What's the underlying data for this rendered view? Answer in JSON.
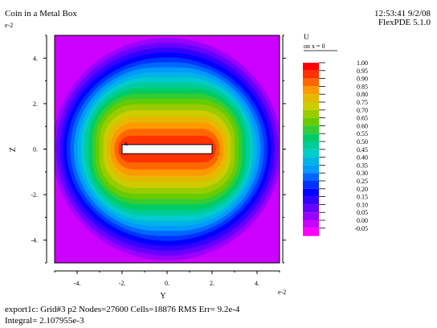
{
  "header": {
    "title": "Coin in a Metal Box",
    "timestamp": "12:53:41 9/2/08",
    "software": "FlexPDE 5.1.0"
  },
  "footer": {
    "stats": "export1c:  Grid#3  p2  Nodes=27600 Cells=18876 RMS Err= 9.2e-4",
    "integral": "Integral=  2.107955e-3"
  },
  "legend": {
    "variable": "U",
    "subtitle": "on x = 0",
    "levels": [
      "1.00",
      "0.95",
      "0.90",
      "0.85",
      "0.80",
      "0.75",
      "0.70",
      "0.65",
      "0.60",
      "0.55",
      "0.50",
      "0.45",
      "0.40",
      "0.35",
      "0.30",
      "0.25",
      "0.20",
      "0.15",
      "0.10",
      "0.05",
      "0.00",
      "-0.05"
    ],
    "colors": [
      "#ff0000",
      "#ff3300",
      "#ff6600",
      "#ff9900",
      "#e6b800",
      "#cccc00",
      "#99cc00",
      "#66cc00",
      "#33cc33",
      "#00cc66",
      "#00cc99",
      "#00cccc",
      "#00b3e6",
      "#0099ff",
      "#0066ff",
      "#0033ff",
      "#0000ff",
      "#3300ff",
      "#6600ff",
      "#9900ff",
      "#cc00ff",
      "#ff00ff"
    ]
  },
  "chart_data": {
    "type": "heatmap",
    "title": "Coin in a Metal Box",
    "xlabel": "Y",
    "ylabel": "Z",
    "x_scale_label": "e-2",
    "y_scale_label": "e-2",
    "x_ticks": [
      "-4.",
      "-2.",
      "0.",
      "2.",
      "4."
    ],
    "y_ticks": [
      "4.",
      "2.",
      "0.",
      "-2.",
      "-4."
    ],
    "x_tick_values": [
      -4,
      -2,
      0,
      2,
      4
    ],
    "y_tick_values": [
      4,
      2,
      0,
      -2,
      -4
    ],
    "xlim": [
      -5,
      5
    ],
    "ylim": [
      -5,
      5
    ],
    "coin": {
      "y_range": [
        -2,
        2
      ],
      "z_range": [
        -0.2,
        0.2
      ],
      "value": 1.0
    },
    "box_value": 0.0,
    "marker_label": "x",
    "value_range": [
      -0.05,
      1.0
    ]
  }
}
